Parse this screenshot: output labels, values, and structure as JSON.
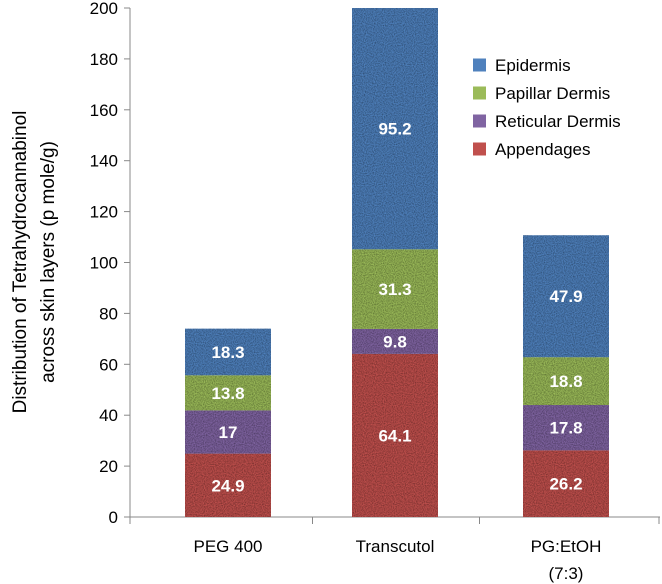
{
  "chart_data": {
    "type": "bar",
    "stacked": true,
    "title": "",
    "xlabel": "",
    "ylabel": "Distribution of Tetrahydrocannabinol across skin layers (p mole/g)",
    "ylabel_lines": [
      "Distribution of Tetrahydrocannabinol",
      "across skin layers (p mole/g)"
    ],
    "ylim": [
      0,
      200
    ],
    "yticks": [
      0,
      20,
      40,
      60,
      80,
      100,
      120,
      140,
      160,
      180,
      200
    ],
    "categories": [
      {
        "label": "PEG 400",
        "lines": [
          "PEG 400"
        ]
      },
      {
        "label": "Transcutol",
        "lines": [
          "Transcutol"
        ]
      },
      {
        "label": "PG:EtOH (7:3)",
        "lines": [
          "PG:EtOH",
          "(7:3)"
        ]
      }
    ],
    "series": [
      {
        "name": "Appendages",
        "color": "#c0504d",
        "values": [
          24.9,
          64.1,
          26.2
        ],
        "labels": [
          "24.9",
          "64.1",
          "26.2"
        ]
      },
      {
        "name": "Reticular Dermis",
        "color": "#8064a2",
        "values": [
          17,
          9.8,
          17.8
        ],
        "labels": [
          "17",
          "9.8",
          "17.8"
        ]
      },
      {
        "name": "Papillar Dermis",
        "color": "#9bbb59",
        "values": [
          13.8,
          31.3,
          18.8
        ],
        "labels": [
          "13.8",
          "31.3",
          "18.8"
        ]
      },
      {
        "name": "Epidermis",
        "color": "#4f81bd",
        "values": [
          18.3,
          95.2,
          47.9
        ],
        "labels": [
          "18.3",
          "95.2",
          "47.9"
        ]
      }
    ],
    "legend": {
      "position": "top-right",
      "order": [
        "Epidermis",
        "Papillar Dermis",
        "Reticular Dermis",
        "Appendages"
      ]
    },
    "grid": false
  }
}
